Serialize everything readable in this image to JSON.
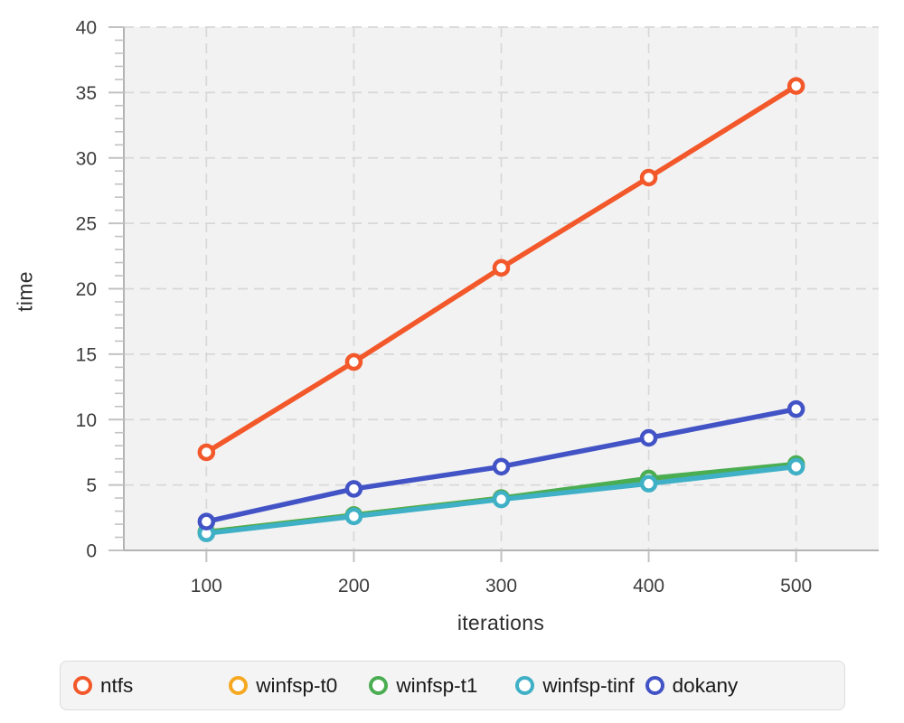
{
  "chart_data": {
    "type": "line",
    "x": [
      100,
      200,
      300,
      400,
      500
    ],
    "series": [
      {
        "name": "ntfs",
        "color": "#f2582a",
        "values": [
          7.5,
          14.4,
          21.6,
          28.5,
          35.5
        ]
      },
      {
        "name": "winfsp-t0",
        "color": "#f6a821",
        "values": [
          1.4,
          2.7,
          4.0,
          5.2,
          6.5
        ]
      },
      {
        "name": "winfsp-t1",
        "color": "#4bad51",
        "values": [
          1.4,
          2.7,
          4.0,
          5.5,
          6.6
        ]
      },
      {
        "name": "winfsp-tinf",
        "color": "#3fb0c6",
        "values": [
          1.3,
          2.6,
          3.9,
          5.1,
          6.4
        ]
      },
      {
        "name": "dokany",
        "color": "#4253c6",
        "values": [
          2.2,
          4.7,
          6.4,
          8.6,
          10.8
        ]
      }
    ],
    "draw_order": [
      "winfsp-t0",
      "winfsp-t1",
      "winfsp-tinf",
      "dokany",
      "ntfs"
    ],
    "title": "",
    "xlabel": "iterations",
    "ylabel": "time",
    "xticks": [
      100,
      200,
      300,
      400,
      500
    ],
    "yticks": [
      0,
      5,
      10,
      15,
      20,
      25,
      30,
      35,
      40
    ],
    "y_minor_step": 1,
    "xlim": [
      44,
      556
    ],
    "ylim": [
      0,
      40
    ],
    "grid": true,
    "grid_style": "dashed",
    "legend_position": "bottom",
    "colors": {
      "plot_background": "#f2f2f2",
      "page_background": "#ffffff",
      "gridline": "#d8d8d8",
      "axis_line": "#b3b3b3",
      "tick": "#c2c2c2",
      "tick_label": "#3d3d3d",
      "marker_fill": "#ffffff"
    }
  }
}
